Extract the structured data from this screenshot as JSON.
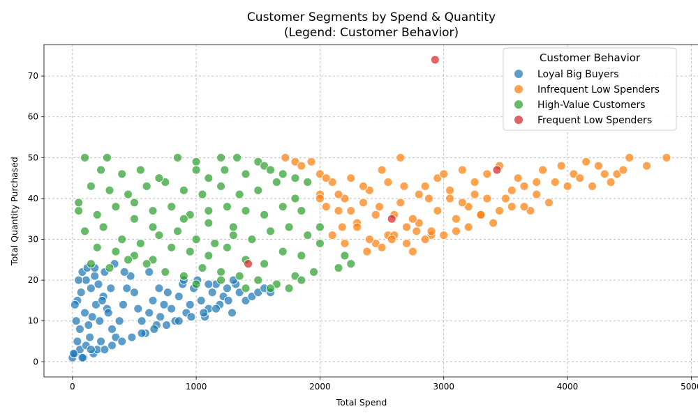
{
  "chart_data": {
    "type": "scatter",
    "title": "Customer Segments by Spend & Quantity",
    "subtitle": "(Legend: Customer Behavior)",
    "xlabel": "Total Spend",
    "ylabel": "Total Quantity Purchased",
    "xlim": [
      -230,
      5060
    ],
    "ylim": [
      -3.7,
      77.7
    ],
    "x_ticks": [
      0,
      1000,
      2000,
      3000,
      4000,
      5000
    ],
    "y_ticks": [
      0,
      10,
      20,
      30,
      40,
      50,
      60,
      70
    ],
    "grid": true,
    "legend": {
      "title": "Customer Behavior",
      "position": "top-right"
    },
    "series": [
      {
        "name": "Loyal Big Buyers",
        "color": "#1f77b4",
        "points": [
          [
            0,
            1
          ],
          [
            20,
            2
          ],
          [
            40,
            5
          ],
          [
            60,
            3
          ],
          [
            90,
            1
          ],
          [
            110,
            4
          ],
          [
            140,
            6
          ],
          [
            170,
            2
          ],
          [
            200,
            3
          ],
          [
            230,
            5
          ],
          [
            260,
            3
          ],
          [
            30,
            10
          ],
          [
            60,
            8
          ],
          [
            100,
            12
          ],
          [
            130,
            9
          ],
          [
            160,
            11
          ],
          [
            190,
            14
          ],
          [
            220,
            10
          ],
          [
            250,
            16
          ],
          [
            280,
            13
          ],
          [
            310,
            18
          ],
          [
            40,
            15
          ],
          [
            70,
            17
          ],
          [
            110,
            20
          ],
          [
            150,
            18
          ],
          [
            180,
            21
          ],
          [
            210,
            19
          ],
          [
            240,
            15
          ],
          [
            290,
            12
          ],
          [
            320,
            8
          ],
          [
            350,
            6
          ],
          [
            380,
            10
          ],
          [
            410,
            14
          ],
          [
            440,
            18
          ],
          [
            470,
            21
          ],
          [
            500,
            17
          ],
          [
            530,
            13
          ],
          [
            560,
            10
          ],
          [
            590,
            7
          ],
          [
            620,
            12
          ],
          [
            650,
            15
          ],
          [
            680,
            9
          ],
          [
            710,
            11
          ],
          [
            740,
            14
          ],
          [
            770,
            17
          ],
          [
            800,
            13
          ],
          [
            830,
            10
          ],
          [
            860,
            16
          ],
          [
            890,
            19
          ],
          [
            920,
            12
          ],
          [
            950,
            14
          ],
          [
            980,
            18
          ],
          [
            1010,
            20
          ],
          [
            1040,
            15
          ],
          [
            1070,
            11
          ],
          [
            1100,
            13
          ],
          [
            1130,
            17
          ],
          [
            1160,
            19
          ],
          [
            1190,
            14
          ],
          [
            1220,
            16
          ],
          [
            1250,
            18
          ],
          [
            1290,
            12
          ],
          [
            1320,
            19
          ],
          [
            1350,
            17
          ],
          [
            1400,
            15
          ],
          [
            1450,
            16
          ],
          [
            1500,
            17
          ],
          [
            1550,
            18
          ],
          [
            1600,
            17
          ],
          [
            340,
            24
          ],
          [
            420,
            22
          ],
          [
            620,
            22
          ],
          [
            260,
            22
          ],
          [
            20,
            14
          ],
          [
            50,
            20
          ],
          [
            80,
            22
          ],
          [
            120,
            23
          ],
          [
            180,
            23
          ],
          [
            10,
            2
          ],
          [
            80,
            1
          ],
          [
            150,
            3
          ],
          [
            320,
            4
          ],
          [
            400,
            5
          ],
          [
            480,
            6
          ],
          [
            560,
            7
          ],
          [
            660,
            8
          ],
          [
            760,
            9
          ],
          [
            860,
            10
          ],
          [
            960,
            11
          ],
          [
            1060,
            12
          ],
          [
            1160,
            13
          ],
          [
            1260,
            15
          ],
          [
            700,
            18
          ],
          [
            900,
            20
          ],
          [
            1100,
            19
          ],
          [
            1300,
            20
          ]
        ]
      },
      {
        "name": "Infrequent Low Spenders",
        "color": "#ff7f0e",
        "points": [
          [
            1720,
            50
          ],
          [
            1800,
            49
          ],
          [
            1850,
            48
          ],
          [
            1930,
            49
          ],
          [
            2000,
            46
          ],
          [
            2050,
            38
          ],
          [
            2100,
            44
          ],
          [
            2150,
            37
          ],
          [
            2200,
            40
          ],
          [
            2250,
            45
          ],
          [
            2300,
            34
          ],
          [
            2350,
            39
          ],
          [
            2400,
            42
          ],
          [
            2450,
            29
          ],
          [
            2500,
            47
          ],
          [
            2550,
            31
          ],
          [
            2600,
            36
          ],
          [
            2650,
            50
          ],
          [
            2700,
            33
          ],
          [
            2750,
            27
          ],
          [
            2800,
            41
          ],
          [
            2850,
            43
          ],
          [
            2900,
            31
          ],
          [
            2950,
            45
          ],
          [
            3000,
            46
          ],
          [
            3050,
            40
          ],
          [
            3100,
            32
          ],
          [
            3150,
            47
          ],
          [
            3200,
            38
          ],
          [
            3250,
            44
          ],
          [
            3300,
            36
          ],
          [
            3350,
            46
          ],
          [
            3400,
            34
          ],
          [
            3450,
            48
          ],
          [
            3500,
            40
          ],
          [
            3550,
            38
          ],
          [
            3600,
            45
          ],
          [
            3650,
            43
          ],
          [
            3700,
            37
          ],
          [
            3750,
            41
          ],
          [
            3800,
            47
          ],
          [
            3850,
            39
          ],
          [
            3900,
            44
          ],
          [
            3950,
            48
          ],
          [
            4000,
            43
          ],
          [
            4050,
            46
          ],
          [
            4100,
            45
          ],
          [
            4150,
            49
          ],
          [
            4200,
            43
          ],
          [
            4250,
            48
          ],
          [
            4300,
            46
          ],
          [
            4350,
            44
          ],
          [
            4400,
            46
          ],
          [
            4450,
            47
          ],
          [
            4500,
            50
          ],
          [
            4640,
            48
          ],
          [
            4800,
            50
          ],
          [
            2100,
            31
          ],
          [
            2200,
            29
          ],
          [
            2300,
            33
          ],
          [
            2400,
            30
          ],
          [
            2500,
            28
          ],
          [
            2600,
            31
          ],
          [
            2700,
            29
          ],
          [
            2800,
            34
          ],
          [
            2900,
            32
          ],
          [
            3000,
            31
          ],
          [
            3100,
            35
          ],
          [
            3200,
            33
          ],
          [
            3300,
            36
          ],
          [
            2050,
            45
          ],
          [
            2150,
            41
          ],
          [
            2250,
            37
          ],
          [
            2350,
            43
          ],
          [
            2450,
            36
          ],
          [
            2550,
            44
          ],
          [
            2650,
            39
          ],
          [
            2750,
            35
          ],
          [
            2850,
            30
          ],
          [
            2950,
            37
          ],
          [
            3050,
            42
          ],
          [
            3150,
            39
          ],
          [
            3250,
            41
          ],
          [
            3350,
            40
          ],
          [
            3450,
            37
          ],
          [
            3550,
            42
          ],
          [
            3650,
            38
          ],
          [
            3750,
            44
          ],
          [
            2000,
            41
          ],
          [
            2000,
            40
          ],
          [
            2180,
            33
          ],
          [
            2380,
            27
          ],
          [
            2480,
            38
          ],
          [
            2580,
            30
          ],
          [
            2680,
            43
          ],
          [
            2780,
            32
          ],
          [
            2880,
            40
          ]
        ]
      },
      {
        "name": "High-Value Customers",
        "color": "#2ca02c",
        "points": [
          [
            100,
            50
          ],
          [
            280,
            50
          ],
          [
            850,
            50
          ],
          [
            1000,
            49
          ],
          [
            1200,
            50
          ],
          [
            1330,
            50
          ],
          [
            1500,
            49
          ],
          [
            150,
            43
          ],
          [
            300,
            42
          ],
          [
            450,
            41
          ],
          [
            600,
            43
          ],
          [
            750,
            44
          ],
          [
            900,
            42
          ],
          [
            1050,
            41
          ],
          [
            1200,
            43
          ],
          [
            1350,
            41
          ],
          [
            1500,
            42
          ],
          [
            1650,
            44
          ],
          [
            1800,
            40
          ],
          [
            50,
            37
          ],
          [
            200,
            36
          ],
          [
            350,
            38
          ],
          [
            500,
            39
          ],
          [
            650,
            37
          ],
          [
            800,
            38
          ],
          [
            950,
            36
          ],
          [
            1100,
            37
          ],
          [
            1250,
            38
          ],
          [
            1400,
            37
          ],
          [
            1550,
            36
          ],
          [
            1700,
            38
          ],
          [
            1850,
            37
          ],
          [
            100,
            32
          ],
          [
            250,
            33
          ],
          [
            400,
            30
          ],
          [
            550,
            29
          ],
          [
            700,
            31
          ],
          [
            850,
            32
          ],
          [
            1000,
            30
          ],
          [
            1150,
            29
          ],
          [
            1300,
            31
          ],
          [
            1450,
            30
          ],
          [
            1600,
            32
          ],
          [
            1750,
            33
          ],
          [
            1900,
            31
          ],
          [
            2000,
            33
          ],
          [
            200,
            28
          ],
          [
            350,
            27
          ],
          [
            500,
            26
          ],
          [
            650,
            25
          ],
          [
            800,
            28
          ],
          [
            950,
            27
          ],
          [
            1100,
            26
          ],
          [
            1250,
            28
          ],
          [
            1400,
            25
          ],
          [
            1550,
            24
          ],
          [
            1700,
            27
          ],
          [
            1850,
            26
          ],
          [
            2000,
            29
          ],
          [
            2200,
            26
          ],
          [
            150,
            24
          ],
          [
            300,
            23
          ],
          [
            450,
            25
          ],
          [
            600,
            24
          ],
          [
            750,
            22
          ],
          [
            900,
            21
          ],
          [
            1050,
            23
          ],
          [
            1200,
            22
          ],
          [
            1350,
            21
          ],
          [
            1500,
            20
          ],
          [
            1650,
            19
          ],
          [
            1800,
            21
          ],
          [
            1950,
            22
          ],
          [
            2150,
            23
          ],
          [
            2250,
            24
          ],
          [
            50,
            39
          ],
          [
            230,
            47
          ],
          [
            400,
            46
          ],
          [
            550,
            47
          ],
          [
            700,
            45
          ],
          [
            1000,
            47
          ],
          [
            1100,
            45
          ],
          [
            1230,
            47
          ],
          [
            1400,
            46
          ],
          [
            1550,
            48
          ],
          [
            1600,
            47
          ],
          [
            1700,
            46
          ],
          [
            1800,
            45
          ],
          [
            1900,
            44
          ],
          [
            1000,
            19
          ],
          [
            1200,
            20
          ],
          [
            1400,
            18
          ],
          [
            1600,
            18
          ],
          [
            1750,
            18
          ],
          [
            1850,
            20
          ],
          [
            500,
            35
          ],
          [
            650,
            33
          ],
          [
            900,
            35
          ],
          [
            1100,
            34
          ],
          [
            1300,
            33
          ]
        ]
      },
      {
        "name": "Frequent Low Spenders",
        "color": "#d62728",
        "points": [
          [
            2930,
            74
          ],
          [
            3430,
            47
          ],
          [
            2580,
            35
          ],
          [
            1420,
            24
          ]
        ]
      }
    ]
  }
}
